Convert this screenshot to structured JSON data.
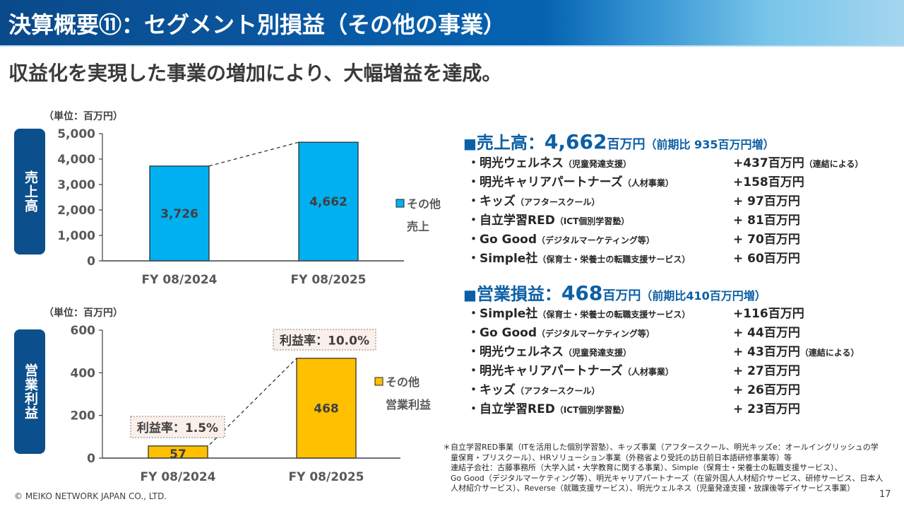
{
  "header": {
    "title": "決算概要⑪：セグメント別損益（その他の事業）",
    "subtitle": "収益化を実現した事業の増加により、大幅増益を達成。"
  },
  "colors": {
    "header_blue": "#0a56a0",
    "tag_blue": "#0b4f8c",
    "sales_bar": "#00b0f0",
    "profit_bar": "#ffc000",
    "accent_text": "#0b5fa5",
    "callout_bg": "#fbefe9"
  },
  "chart_data": [
    {
      "type": "bar",
      "title": "売上高",
      "unit_label": "（単位：百万円）",
      "categories": [
        "FY 08/2024",
        "FY 08/2025"
      ],
      "series": [
        {
          "name": "その他売上",
          "values": [
            3726,
            4662
          ]
        }
      ],
      "data_labels": [
        "3,726",
        "4,662"
      ],
      "legend": [
        "その他",
        "売上"
      ],
      "legend_position": "right",
      "ylim": [
        0,
        5000
      ],
      "yticks": [
        0,
        1000,
        2000,
        3000,
        4000,
        5000
      ],
      "ytick_labels": [
        "0",
        "1,000",
        "2,000",
        "3,000",
        "4,000",
        "5,000"
      ],
      "grid": false,
      "connector": "dashed line between bar tops"
    },
    {
      "type": "bar",
      "title": "営業利益",
      "unit_label": "（単位：百万円）",
      "categories": [
        "FY 08/2024",
        "FY 08/2025"
      ],
      "series": [
        {
          "name": "その他営業利益",
          "values": [
            57,
            468
          ]
        }
      ],
      "data_labels": [
        "57",
        "468"
      ],
      "legend": [
        "その他",
        "営業利益"
      ],
      "legend_position": "right",
      "ylim": [
        0,
        600
      ],
      "yticks": [
        0,
        200,
        400,
        600
      ],
      "ytick_labels": [
        "0",
        "200",
        "400",
        "600"
      ],
      "grid": false,
      "annotations": [
        "利益率：1.5%",
        "利益率：10.0%"
      ],
      "margin_rates_percent": [
        1.5,
        10.0
      ]
    }
  ],
  "side_tags": {
    "sales": "売上高",
    "profit": "営業利益"
  },
  "sales_section": {
    "square": "■",
    "label": "売上高：",
    "value": "4,662",
    "unit": "百万円",
    "note": "（前期比 935百万円増）",
    "items": [
      {
        "name": "・明光ウェルネス",
        "sub": "（児童発達支援）",
        "value": "+437百万円",
        "note": "（連結による）"
      },
      {
        "name": "・明光キャリアパートナーズ",
        "sub": "（人材事業）",
        "value": "+158百万円",
        "note": ""
      },
      {
        "name": "・キッズ",
        "sub": "（アフタースクール）",
        "value": "+ 97百万円",
        "note": ""
      },
      {
        "name": "・自立学習RED",
        "sub": "（ICT個別学習塾）",
        "value": "+ 81百万円",
        "note": ""
      },
      {
        "name": "・Go Good",
        "sub": "（デジタルマーケティング等）",
        "value": "+ 70百万円",
        "note": ""
      },
      {
        "name": "・Simple社",
        "sub": "（保育士・栄養士の転職支援サービス）",
        "value": "+ 60百万円",
        "note": ""
      }
    ]
  },
  "profit_section": {
    "square": "■",
    "label": "営業損益：",
    "value": "468",
    "unit": "百万円",
    "note": "（前期比410百万円増）",
    "items": [
      {
        "name": "・Simple社",
        "sub": "（保育士・栄養士の転職支援サービス）",
        "value": "+116百万円",
        "note": ""
      },
      {
        "name": "・Go Good",
        "sub": "（デジタルマーケティング等）",
        "value": "+ 44百万円",
        "note": ""
      },
      {
        "name": "・明光ウェルネス",
        "sub": "（児童発達支援）",
        "value": "+ 43百万円",
        "note": "（連結による）"
      },
      {
        "name": "・明光キャリアパートナーズ",
        "sub": "（人材事業）",
        "value": "+ 27百万円",
        "note": ""
      },
      {
        "name": "・キッズ",
        "sub": "（アフタースクール）",
        "value": "+ 26百万円",
        "note": ""
      },
      {
        "name": "・自立学習RED",
        "sub": "（ICT個別学習塾）",
        "value": "+ 23百万円",
        "note": ""
      }
    ]
  },
  "footnote": [
    "＊自立学習RED事業（ITを活用した個別学習塾）、キッズ事業（アフタースクール、明光キッズe：オールイングリッシュの学",
    "　童保育・プリスクール）、HRソリューション事業（外務省より受託の訪日前日本語研修事業等）等",
    "　連結子会社：古藤事務所（大学入試・大学教育に関する事業）、Simple（保育士・栄養士の転職支援サービス）、",
    "　Go Good（デジタルマーケティング等）、明光キャリアパートナーズ（在留外国人人材紹介サービス、研修サービス、日本人",
    "　人材紹介サービス）、Reverse（就職支援サービス）、明光ウェルネス（児童発達支援・放課後等デイサービス事業）"
  ],
  "footer": {
    "copyright": "© MEIKO NETWORK JAPAN CO., LTD.",
    "page": "17"
  }
}
